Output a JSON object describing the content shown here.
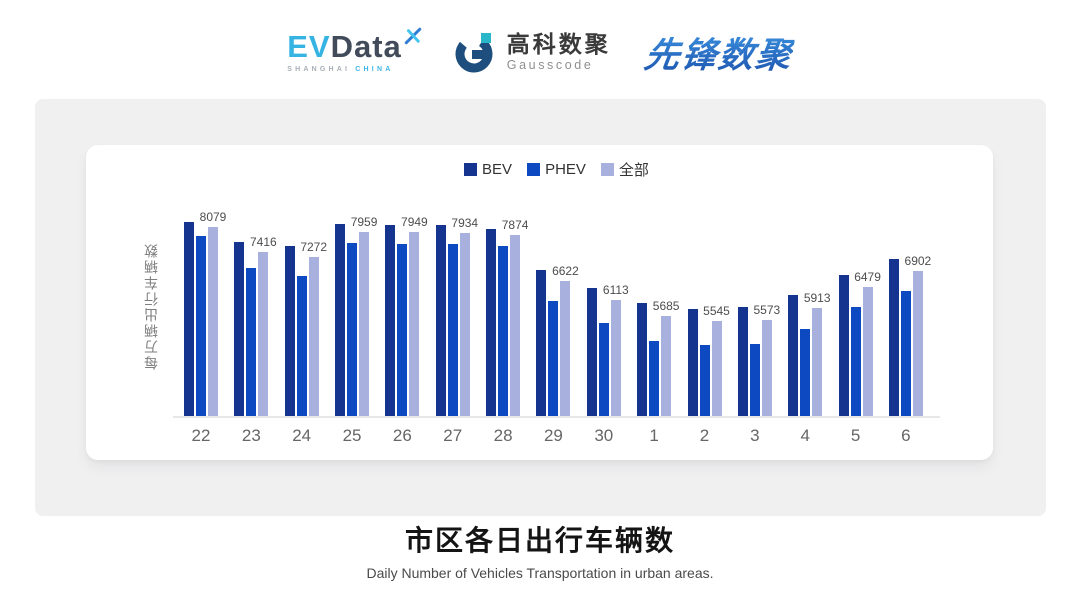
{
  "header": {
    "evdata": {
      "ev": "EV",
      "data": "Data",
      "sub_left": "SHANGHAI",
      "sub_right": "CHINA"
    },
    "gausscode": {
      "cn": "高科数聚",
      "en": "Gausscode"
    },
    "pioneer": {
      "text": "先锋数聚"
    }
  },
  "chart_data": {
    "type": "bar",
    "title": "市区各日出行车辆数",
    "subtitle": "Daily Number of Vehicles Transportation in urban areas.",
    "ylabel": "每万辆出行车辆数",
    "xlabel": "",
    "categories": [
      "22",
      "23",
      "24",
      "25",
      "26",
      "27",
      "28",
      "29",
      "30",
      "1",
      "2",
      "3",
      "4",
      "5",
      "6"
    ],
    "series": [
      {
        "name": "BEV",
        "color": "#14348f",
        "values": [
          8232,
          7690,
          7572,
          8160,
          8133,
          8152,
          8043,
          6921,
          6434,
          6046,
          5886,
          5940,
          6249,
          6791,
          7214
        ]
      },
      {
        "name": "PHEV",
        "color": "#0d4ac1",
        "values": [
          7843,
          6984,
          6778,
          7645,
          7634,
          7626,
          7564,
          6100,
          5496,
          5024,
          4921,
          4938,
          5336,
          5932,
          6366
        ]
      },
      {
        "name": "全部",
        "color": "#a8b1de",
        "values": [
          8079,
          7416,
          7272,
          7959,
          7949,
          7934,
          7874,
          6622,
          6113,
          5685,
          5545,
          5573,
          5913,
          6479,
          6902
        ]
      }
    ],
    "data_labels": {
      "series": "全部",
      "values": [
        8079,
        7416,
        7272,
        7959,
        7949,
        7934,
        7874,
        6622,
        6113,
        5685,
        5545,
        5573,
        5913,
        6479,
        6902
      ]
    },
    "ylim": [
      3000,
      9000
    ],
    "grid": false,
    "legend_position": "top-center"
  },
  "colors": {
    "panel_bg": "#f0f0f1",
    "card_bg": "#ffffff",
    "axis_line": "#e7e7e7",
    "tick_text": "#666666",
    "data_label_text": "#4d4d4d",
    "legend_text": "#333333",
    "evdata_blue": "#35b4e3",
    "evdata_dark": "#414b59",
    "gausscode_navy": "#1d4e7d",
    "gausscode_teal": "#2ab6c9",
    "pioneer_blue": "#2b74c9"
  }
}
